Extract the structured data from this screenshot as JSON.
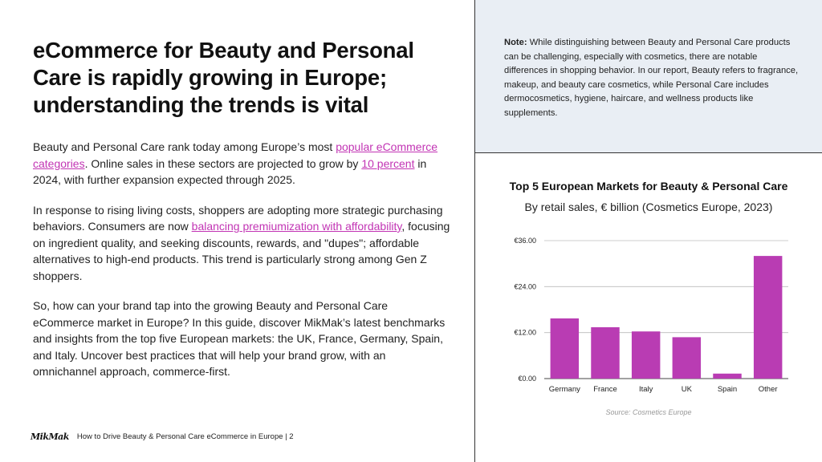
{
  "heading": "eCommerce for Beauty and Personal Care is rapidly growing in Europe; understanding the trends is vital",
  "para1": {
    "t1": "Beauty and Personal Care rank today among Europe’s most ",
    "link1": "popular eCommerce categories",
    "t2": ". Online sales in these sectors are projected to grow by ",
    "link2": "10 percent",
    "t3": " in 2024, with further expansion expected through 2025."
  },
  "para2": {
    "t1": "In response to rising living costs, shoppers are adopting more strategic purchasing behaviors. Consumers are now ",
    "link1": "balancing premiumization with affordability",
    "t2": ", focusing on ingredient quality, and seeking discounts, rewards, and \"dupes\"; affordable alternatives to high-end products. This trend is particularly strong among Gen Z shoppers."
  },
  "para3": "So, how can your brand tap into the growing Beauty and Personal Care eCommerce market in Europe? In this guide, discover MikMak’s latest benchmarks and insights from the top five European markets: the UK, France, Germany, Spain, and Italy. Uncover best practices that will help your brand grow, with an omnichannel approach, commerce-first.",
  "note": {
    "label": "Note:",
    "text": " While distinguishing between Beauty and Personal Care products can be challenging, especially with cosmetics, there are notable differences in shopping behavior. In our report, Beauty refers to fragrance, makeup, and beauty care cosmetics, while Personal Care includes dermocosmetics, hygiene, haircare, and wellness products like supplements."
  },
  "chart_data": {
    "type": "bar",
    "title": "Top 5 European Markets for Beauty & Personal Care",
    "subtitle": "By retail sales, € billion (Cosmetics Europe, 2023)",
    "categories": [
      "Germany",
      "France",
      "Italy",
      "UK",
      "Spain",
      "Other"
    ],
    "values": [
      15.7,
      13.4,
      12.3,
      10.8,
      1.3,
      32.0
    ],
    "ylim": [
      0,
      36
    ],
    "yticks": [
      0,
      12,
      24,
      36
    ],
    "ytick_labels": [
      "€0.00",
      "€12.00",
      "€24.00",
      "€36.00"
    ],
    "color": "#b93cb3",
    "source": "Source: Cosmetics Europe",
    "xlabel": "",
    "ylabel": ""
  },
  "footer": {
    "logo": "MikMak",
    "text": "How to Drive Beauty & Personal Care eCommerce in Europe | 2"
  }
}
